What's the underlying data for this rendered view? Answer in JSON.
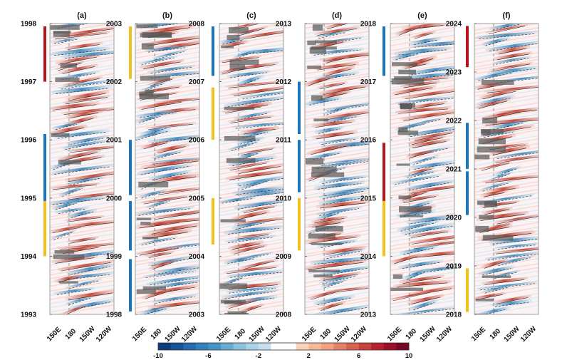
{
  "chart_data": {
    "type": "heatmap",
    "description_of_axes": {
      "x_ticks": [
        "150E",
        "180",
        "150W",
        "120W"
      ],
      "y_unit": "year"
    },
    "colorbar": {
      "ticks": [
        -10,
        -6,
        -2,
        2,
        6,
        10
      ],
      "tick_labels": [
        "-10",
        "-6",
        "-2",
        "2",
        "6",
        "10"
      ],
      "range": [
        -10,
        10
      ],
      "colors": [
        "#08306b",
        "#2166ac",
        "#4393c3",
        "#92c5de",
        "#d1e5f0",
        "#fddbc7",
        "#f4a582",
        "#d6604d",
        "#b2182b",
        "#67001f"
      ]
    },
    "panels": [
      {
        "title": "(a)",
        "y_range": [
          1993,
          1998
        ],
        "year_ticks": [
          "1998",
          "1997",
          "1996",
          "1995",
          "1994",
          "1993"
        ],
        "bars": [
          {
            "start": 1997.0,
            "end": 1997.95,
            "color": "#b5161b"
          },
          {
            "start": 1994.9,
            "end": 1996.1,
            "color": "#1b75bb"
          },
          {
            "start": 1994.0,
            "end": 1994.95,
            "color": "#f2c01b"
          }
        ]
      },
      {
        "title": "(b)",
        "y_range": [
          1998,
          2003
        ],
        "year_ticks": [
          "2003",
          "2002",
          "2001",
          "2000",
          "1999",
          "1998"
        ],
        "bars": [
          {
            "start": 2002.05,
            "end": 2002.95,
            "color": "#f2c01b"
          },
          {
            "start": 2000.05,
            "end": 2001.0,
            "color": "#1b75bb"
          },
          {
            "start": 1999.1,
            "end": 1999.95,
            "color": "#1b75bb"
          },
          {
            "start": 1998.05,
            "end": 1998.95,
            "color": "#1b75bb"
          }
        ]
      },
      {
        "title": "(c)",
        "y_range": [
          2003,
          2008
        ],
        "year_ticks": [
          "2008",
          "2007",
          "2006",
          "2005",
          "2004",
          "2003"
        ],
        "bars": [
          {
            "start": 2007.1,
            "end": 2007.95,
            "color": "#1b75bb"
          },
          {
            "start": 2006.0,
            "end": 2006.9,
            "color": "#f2c01b"
          },
          {
            "start": 2004.2,
            "end": 2005.0,
            "color": "#f2c01b"
          }
        ]
      },
      {
        "title": "(d)",
        "y_range": [
          2008,
          2013
        ],
        "year_ticks": [
          "2013",
          "2012",
          "2011",
          "2010",
          "2009",
          "2008"
        ],
        "bars": [
          {
            "start": 2011.1,
            "end": 2012.0,
            "color": "#1b75bb"
          },
          {
            "start": 2010.1,
            "end": 2011.0,
            "color": "#1b75bb"
          },
          {
            "start": 2009.1,
            "end": 2010.0,
            "color": "#f2c01b"
          }
        ]
      },
      {
        "title": "(e)",
        "y_range": [
          2013,
          2018
        ],
        "year_ticks": [
          "2018",
          "2017",
          "2016",
          "2015",
          "2014",
          "2013"
        ],
        "bars": [
          {
            "start": 2017.1,
            "end": 2017.95,
            "color": "#1b75bb"
          },
          {
            "start": 2014.9,
            "end": 2015.95,
            "color": "#b5161b"
          },
          {
            "start": 2014.0,
            "end": 2014.95,
            "color": "#f2c01b"
          }
        ]
      },
      {
        "title": "(f)",
        "y_range": [
          2018,
          2024
        ],
        "year_ticks": [
          "2024",
          "2023",
          "2022",
          "2021",
          "2020",
          "2019",
          "2018"
        ],
        "bars": [
          {
            "start": 2023.1,
            "end": 2023.95,
            "color": "#b5161b"
          },
          {
            "start": 2021.0,
            "end": 2021.95,
            "color": "#1b75bb"
          },
          {
            "start": 2020.05,
            "end": 2020.95,
            "color": "#1b75bb"
          },
          {
            "start": 2018.05,
            "end": 2018.95,
            "color": "#f2c01b"
          }
        ]
      }
    ]
  }
}
